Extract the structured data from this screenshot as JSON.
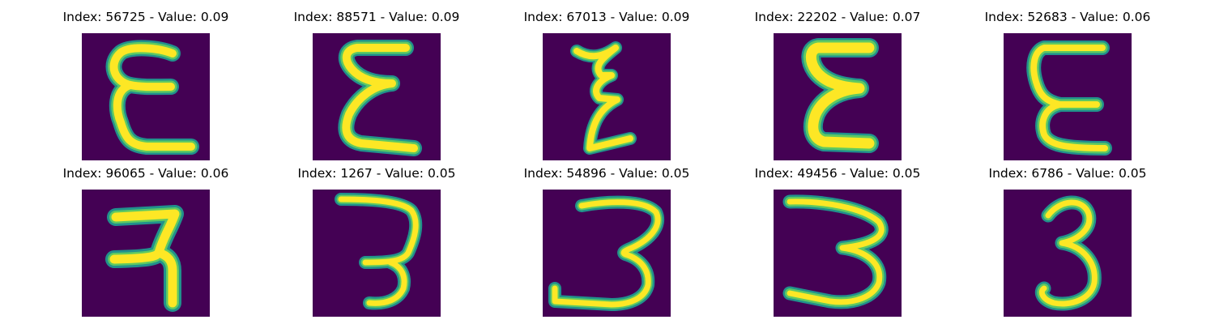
{
  "colors": {
    "background": "#440154",
    "stroke_core": "#fde725",
    "stroke_mid": "#5ec962",
    "stroke_edge": "#21918c"
  },
  "panels": [
    {
      "index_label": "Index: 56725 - Value: 0.09",
      "glyph": "epsilon"
    },
    {
      "index_label": "Index: 88571 - Value: 0.09",
      "glyph": "epsilon"
    },
    {
      "index_label": "Index: 67013 - Value: 0.09",
      "glyph": "zigzag-epsilon"
    },
    {
      "index_label": "Index: 22202 - Value: 0.07",
      "glyph": "epsilon"
    },
    {
      "index_label": "Index: 52683 - Value: 0.06",
      "glyph": "epsilon"
    },
    {
      "index_label": "Index: 96065 - Value: 0.06",
      "glyph": "devanagari-like"
    },
    {
      "index_label": "Index: 1267 - Value: 0.05",
      "glyph": "three"
    },
    {
      "index_label": "Index: 54896 - Value: 0.05",
      "glyph": "three"
    },
    {
      "index_label": "Index: 49456 - Value: 0.05",
      "glyph": "three"
    },
    {
      "index_label": "Index: 6786 - Value: 0.05",
      "glyph": "three"
    }
  ]
}
